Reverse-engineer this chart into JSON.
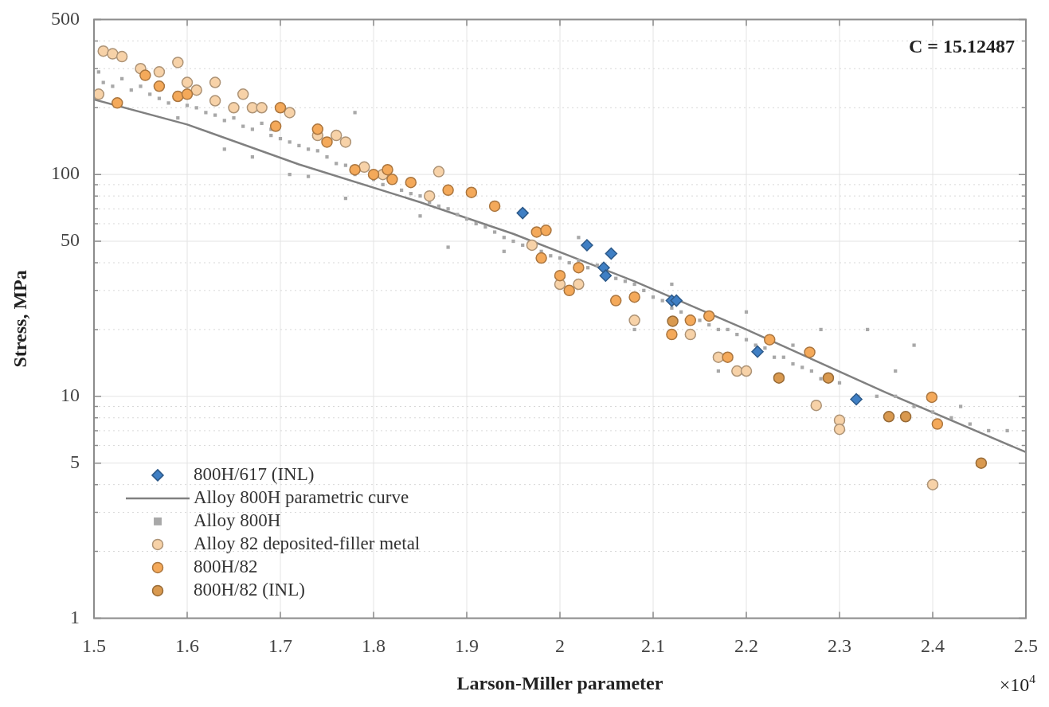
{
  "chart_data": {
    "type": "scatter",
    "xlabel": "Larson-Miller parameter",
    "ylabel": "Stress, MPa",
    "annotations": [
      "C = 15.12487",
      "×10$^{4}$"
    ],
    "xlim": [
      1.5,
      2.5
    ],
    "xticks": [
      1.5,
      1.6,
      1.7,
      1.8,
      1.9,
      2,
      2.1,
      2.2,
      2.3,
      2.4,
      2.5
    ],
    "ylim": [
      1,
      500
    ],
    "yticks": [
      1,
      {
        "value": 2,
        "label": null
      },
      {
        "value": 3,
        "label": null
      },
      {
        "value": 4,
        "label": null
      },
      5,
      {
        "value": 6,
        "label": null
      },
      {
        "value": 7,
        "label": null
      },
      {
        "value": 8,
        "label": null
      },
      {
        "value": 9,
        "label": null
      },
      10,
      {
        "value": 20,
        "label": null
      },
      {
        "value": 30,
        "label": null
      },
      {
        "value": 40,
        "label": null
      },
      50,
      {
        "value": 60,
        "label": null
      },
      {
        "value": 70,
        "label": null
      },
      {
        "value": 80,
        "label": null
      },
      {
        "value": 90,
        "label": null
      },
      100,
      {
        "value": 200,
        "label": null
      },
      {
        "value": 300,
        "label": null
      },
      {
        "value": 400,
        "label": null
      },
      500
    ],
    "log": "y",
    "grid": true,
    "legend": "bottom left",
    "series": [
      {
        "name": "800H/617 (INL)",
        "marker": "diamond",
        "color": "#3f7fc4",
        "x": [
          1.96,
          2.029,
          2.055,
          2.047,
          2.049,
          2.12,
          2.125,
          2.212,
          2.318
        ],
        "values": [
          67,
          48,
          44,
          38,
          35,
          27,
          27,
          15.9,
          9.7
        ]
      },
      {
        "name": "Alloy 800H parametric curve",
        "type": "line",
        "marker": "none",
        "line_style": "solid",
        "color": "#808080",
        "x": [
          1.5,
          1.6,
          1.72,
          1.85,
          1.95,
          2.08,
          2.2,
          2.35,
          2.5
        ],
        "values": [
          218,
          168,
          111,
          75,
          54,
          33,
          20,
          10.4,
          5.6
        ]
      },
      {
        "name": "Alloy 800H",
        "marker": "square",
        "color": "#a8a8a8",
        "x": [
          1.505,
          1.51,
          1.52,
          1.53,
          1.54,
          1.55,
          1.56,
          1.57,
          1.58,
          1.6,
          1.61,
          1.62,
          1.63,
          1.64,
          1.65,
          1.66,
          1.67,
          1.68,
          1.69,
          1.7,
          1.71,
          1.72,
          1.73,
          1.74,
          1.75,
          1.76,
          1.77,
          1.78,
          1.8,
          1.81,
          1.83,
          1.84,
          1.85,
          1.86,
          1.87,
          1.88,
          1.89,
          1.9,
          1.91,
          1.92,
          1.93,
          1.94,
          1.95,
          1.96,
          1.98,
          1.99,
          2.0,
          2.01,
          2.02,
          2.03,
          2.04,
          2.06,
          2.07,
          2.08,
          2.09,
          2.1,
          2.11,
          2.12,
          2.13,
          2.14,
          2.15,
          2.16,
          2.17,
          2.18,
          2.19,
          2.2,
          2.21,
          2.22,
          2.23,
          2.24,
          2.25,
          2.26,
          2.27,
          2.28,
          2.3,
          2.32,
          2.34,
          2.36,
          2.38,
          2.4,
          2.42,
          2.44,
          2.46,
          2.48,
          1.67,
          1.71,
          1.73,
          1.69,
          1.77,
          1.88,
          1.94,
          2.08,
          2.17,
          2.28,
          2.33,
          2.38,
          2.43,
          2.36,
          2.25,
          1.78,
          1.64,
          1.59,
          1.85,
          2.02,
          2.12,
          2.2
        ],
        "values": [
          290,
          260,
          250,
          270,
          240,
          250,
          230,
          220,
          210,
          205,
          200,
          190,
          185,
          175,
          180,
          165,
          160,
          170,
          150,
          145,
          140,
          135,
          130,
          128,
          120,
          112,
          110,
          100,
          95,
          90,
          85,
          82,
          80,
          75,
          72,
          70,
          66,
          63,
          60,
          58,
          55,
          52,
          50,
          48,
          45,
          43,
          42,
          40,
          41,
          38,
          39,
          34,
          33,
          32,
          30,
          28,
          27,
          25,
          24,
          23,
          22,
          21,
          20,
          20,
          19,
          18,
          17,
          16.5,
          15,
          15,
          14,
          13.5,
          13,
          12,
          11.5,
          10,
          10,
          10,
          9,
          8.5,
          8,
          7.5,
          7,
          7,
          120,
          100,
          98,
          160,
          78,
          47,
          45,
          20,
          13,
          20,
          20,
          17,
          9,
          13,
          17,
          190,
          130,
          180,
          65,
          52,
          32,
          24
        ]
      },
      {
        "name": "Alloy 82 deposited-filler metal",
        "marker": "circle",
        "color": "#f7d2a8",
        "x": [
          1.505,
          1.51,
          1.52,
          1.53,
          1.55,
          1.57,
          1.59,
          1.6,
          1.61,
          1.63,
          1.63,
          1.65,
          1.66,
          1.67,
          1.68,
          1.71,
          1.74,
          1.75,
          1.76,
          1.77,
          1.79,
          1.81,
          1.87,
          1.86,
          1.97,
          2.0,
          2.01,
          2.02,
          2.08,
          2.14,
          2.17,
          2.18,
          2.19,
          2.2,
          2.275,
          2.3,
          2.3,
          2.4
        ],
        "values": [
          230,
          360,
          350,
          340,
          300,
          290,
          320,
          260,
          240,
          260,
          215,
          200,
          230,
          200,
          200,
          190,
          150,
          null,
          150,
          140,
          108,
          100,
          103,
          80,
          48,
          32,
          null,
          32,
          22,
          19,
          15,
          null,
          13,
          13,
          9.1,
          7.8,
          7.1,
          4.0
        ]
      },
      {
        "name": "800H/82",
        "marker": "circle",
        "color": "#f4a95a",
        "x": [
          1.525,
          1.555,
          1.57,
          1.59,
          1.6,
          1.695,
          1.7,
          1.74,
          1.75,
          1.78,
          1.8,
          1.815,
          1.82,
          1.84,
          1.88,
          1.905,
          1.93,
          1.975,
          1.985,
          1.98,
          2.0,
          2.01,
          2.02,
          2.06,
          2.08,
          2.12,
          2.14,
          2.16,
          2.18,
          2.225,
          2.268,
          2.399,
          2.405
        ],
        "values": [
          210,
          280,
          250,
          225,
          230,
          165,
          200,
          160,
          140,
          105,
          100,
          105,
          95,
          92,
          85,
          83,
          72,
          55,
          56,
          42,
          35,
          30,
          38,
          27,
          28,
          19,
          22,
          23,
          15,
          18,
          15.8,
          9.9,
          7.5
        ]
      },
      {
        "name": "800H/82 (INL)",
        "marker": "circle",
        "color": "#d9994f",
        "x": [
          2.121,
          2.235,
          2.288,
          2.353,
          2.371,
          2.452
        ],
        "values": [
          21.8,
          12.1,
          12.1,
          8.1,
          8.1,
          5.0
        ]
      }
    ]
  }
}
